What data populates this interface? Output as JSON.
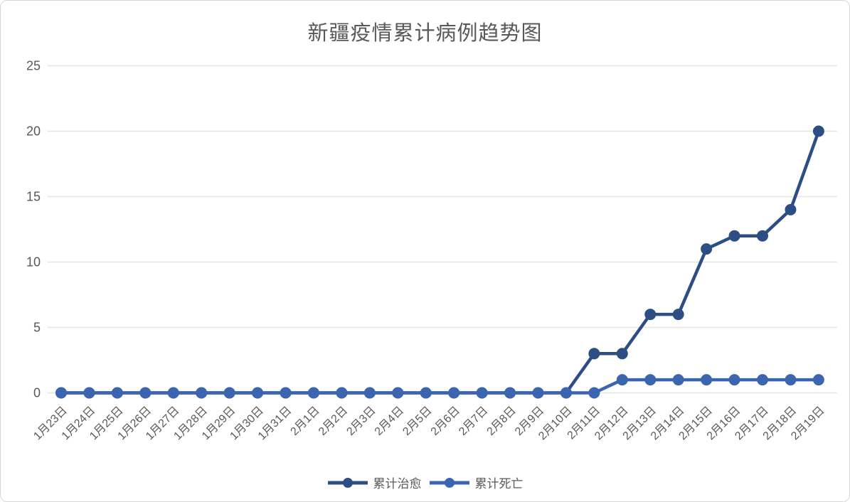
{
  "chart_data": {
    "type": "line",
    "title": "新疆疫情累计病例趋势图",
    "categories": [
      "1月23日",
      "1月24日",
      "1月25日",
      "1月26日",
      "1月27日",
      "1月28日",
      "1月29日",
      "1月30日",
      "1月31日",
      "2月1日",
      "2月2日",
      "2月3日",
      "2月4日",
      "2月5日",
      "2月6日",
      "2月7日",
      "2月8日",
      "2月9日",
      "2月10日",
      "2月11日",
      "2月12日",
      "2月13日",
      "2月14日",
      "2月15日",
      "2月16日",
      "2月17日",
      "2月18日",
      "2月19日"
    ],
    "series": [
      {
        "name": "累计治愈",
        "color": "#2d4e82",
        "values": [
          0,
          0,
          0,
          0,
          0,
          0,
          0,
          0,
          0,
          0,
          0,
          0,
          0,
          0,
          0,
          0,
          0,
          0,
          0,
          3,
          3,
          6,
          6,
          11,
          12,
          12,
          14,
          20
        ]
      },
      {
        "name": "累计死亡",
        "color": "#3c65b0",
        "values": [
          0,
          0,
          0,
          0,
          0,
          0,
          0,
          0,
          0,
          0,
          0,
          0,
          0,
          0,
          0,
          0,
          0,
          0,
          0,
          0,
          1,
          1,
          1,
          1,
          1,
          1,
          1,
          1
        ]
      }
    ],
    "xlabel": "",
    "ylabel": "",
    "ylim": [
      0,
      25
    ],
    "yticks": [
      0,
      5,
      10,
      15,
      20,
      25
    ],
    "grid": true,
    "legend_position": "bottom",
    "colors": {
      "grid": "#e4e4e4",
      "text": "#595959",
      "background": "#ffffff",
      "border": "#d9d9d9"
    }
  }
}
